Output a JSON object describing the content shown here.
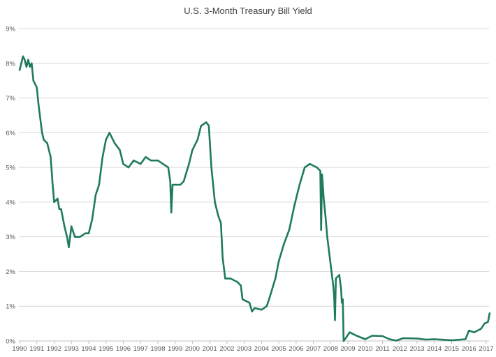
{
  "chart_data": {
    "type": "line",
    "title": "U.S. 3-Month Treasury Bill Yield",
    "xlabel": "",
    "ylabel": "",
    "ylim": [
      0,
      9
    ],
    "xlim": [
      1990,
      2017.25
    ],
    "grid": "horizontal",
    "line_color": "#1f7a5f",
    "y_ticks": [
      "0%",
      "1%",
      "2%",
      "3%",
      "4%",
      "5%",
      "6%",
      "7%",
      "8%",
      "9%"
    ],
    "x_ticks": [
      "1990",
      "1991",
      "1992",
      "1993",
      "1994",
      "1995",
      "1996",
      "1997",
      "1998",
      "1999",
      "2000",
      "2001",
      "2002",
      "2003",
      "2004",
      "2005",
      "2006",
      "2007",
      "2008",
      "2009",
      "2010",
      "2011",
      "2012",
      "2013",
      "2014",
      "2015",
      "2016",
      "2017"
    ],
    "series": [
      {
        "x": [
          1990.0,
          1990.1,
          1990.2,
          1990.3,
          1990.4,
          1990.5,
          1990.6,
          1990.7,
          1990.8,
          1990.9,
          1991.0,
          1991.1,
          1991.2,
          1991.3,
          1991.4,
          1991.6,
          1991.8,
          1991.9,
          1992.0,
          1992.2,
          1992.3,
          1992.4,
          1992.6,
          1992.75,
          1992.85,
          1993.0,
          1993.2,
          1993.5,
          1993.8,
          1994.0,
          1994.2,
          1994.4,
          1994.6,
          1994.8,
          1995.0,
          1995.2,
          1995.5,
          1995.8,
          1996.0,
          1996.3,
          1996.6,
          1997.0,
          1997.3,
          1997.6,
          1998.0,
          1998.3,
          1998.6,
          1998.72,
          1998.78,
          1998.85,
          1999.0,
          1999.3,
          1999.5,
          1999.8,
          2000.0,
          2000.3,
          2000.5,
          2000.8,
          2000.95,
          2001.1,
          2001.3,
          2001.5,
          2001.65,
          2001.75,
          2001.9,
          2002.2,
          2002.6,
          2002.8,
          2002.9,
          2003.3,
          2003.45,
          2003.6,
          2004.0,
          2004.3,
          2004.5,
          2004.8,
          2005.0,
          2005.3,
          2005.6,
          2005.9,
          2006.2,
          2006.5,
          2006.8,
          2007.2,
          2007.4,
          2007.45,
          2007.5,
          2007.6,
          2007.7,
          2007.8,
          2007.9,
          2008.0,
          2008.15,
          2008.2,
          2008.25,
          2008.3,
          2008.5,
          2008.6,
          2008.65,
          2008.7,
          2008.75,
          2008.9,
          2009.1,
          2009.5,
          2010.0,
          2010.4,
          2011.0,
          2011.4,
          2011.8,
          2012.2,
          2013.0,
          2013.5,
          2014.0,
          2015.0,
          2015.8,
          2016.0,
          2016.3,
          2016.5,
          2016.7,
          2016.9,
          2017.1,
          2017.2
        ],
        "values": [
          7.8,
          8.0,
          8.2,
          8.1,
          7.9,
          8.1,
          7.9,
          8.0,
          7.5,
          7.4,
          7.3,
          6.8,
          6.4,
          6.0,
          5.8,
          5.7,
          5.3,
          4.6,
          4.0,
          4.1,
          3.8,
          3.8,
          3.3,
          3.0,
          2.7,
          3.3,
          3.0,
          3.0,
          3.1,
          3.1,
          3.5,
          4.2,
          4.5,
          5.3,
          5.8,
          6.0,
          5.7,
          5.5,
          5.1,
          5.0,
          5.2,
          5.1,
          5.3,
          5.2,
          5.2,
          5.1,
          5.0,
          4.6,
          3.7,
          4.5,
          4.5,
          4.5,
          4.6,
          5.1,
          5.5,
          5.8,
          6.2,
          6.3,
          6.2,
          5.0,
          4.0,
          3.6,
          3.4,
          2.4,
          1.8,
          1.8,
          1.7,
          1.6,
          1.2,
          1.1,
          0.85,
          0.95,
          0.9,
          1.0,
          1.3,
          1.8,
          2.3,
          2.8,
          3.2,
          3.9,
          4.5,
          5.0,
          5.1,
          5.0,
          4.9,
          3.2,
          4.8,
          4.1,
          3.6,
          3.0,
          2.6,
          2.2,
          1.6,
          1.3,
          0.6,
          1.8,
          1.9,
          1.5,
          1.1,
          1.2,
          0.0,
          0.1,
          0.25,
          0.15,
          0.05,
          0.15,
          0.14,
          0.05,
          0.01,
          0.08,
          0.07,
          0.04,
          0.05,
          0.02,
          0.05,
          0.3,
          0.25,
          0.3,
          0.35,
          0.5,
          0.55,
          0.8
        ]
      }
    ]
  }
}
